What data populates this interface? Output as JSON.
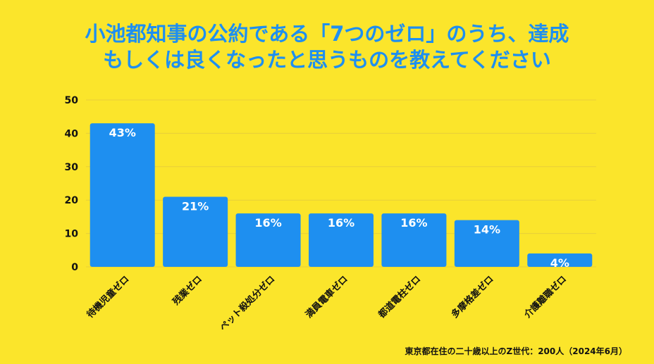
{
  "title": {
    "line1": "小池都知事の公約である「7つのゼロ」のうち、達成",
    "line2": "もしくは良くなったと思うものを教えてください"
  },
  "footer": "東京都在住の二十歳以上のZ世代：200人（2024年6月）",
  "colors": {
    "background": "#fbe52b",
    "bar": "#1e8ff0",
    "title": "#1e8ff0",
    "grid": "#e8cf3a"
  },
  "chart_data": {
    "type": "bar",
    "categories": [
      "待機児童ゼロ",
      "残業ゼロ",
      "ペット殺処分ゼロ",
      "満員電車ゼロ",
      "都道電柱ゼロ",
      "多摩格差ゼロ",
      "介護離職ゼロ"
    ],
    "values": [
      43,
      21,
      16,
      16,
      16,
      14,
      4
    ],
    "data_labels": [
      "43%",
      "21%",
      "16%",
      "16%",
      "16%",
      "14%",
      "4%"
    ],
    "yticks": [
      "0",
      "10",
      "20",
      "30",
      "40",
      "50"
    ],
    "ylim": [
      0,
      50
    ],
    "grid": true
  }
}
